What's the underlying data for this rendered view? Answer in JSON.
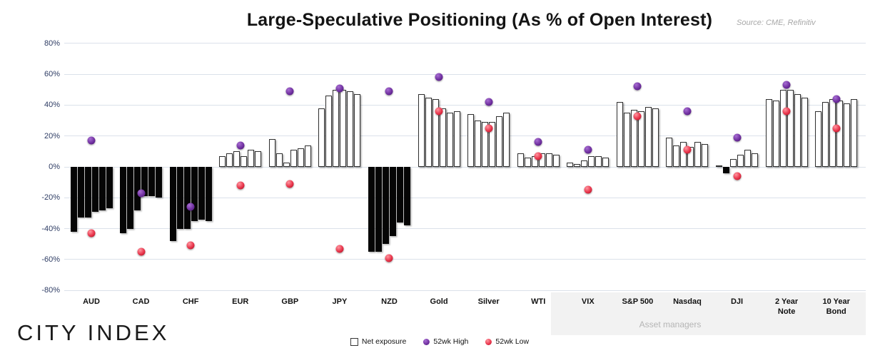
{
  "title": "Large-Speculative Positioning (As % of Open Interest)",
  "source": "Source: CME, Refinitiv",
  "logo": "CITY INDEX",
  "asset_managers_label": "Asset managers",
  "legend": {
    "net_exposure": "Net exposure",
    "high": "52wk High",
    "low": "52wk Low"
  },
  "colors": {
    "high_dot": "#7030a0",
    "low_dot": "#e8334a",
    "positive_bar_fill": "#ffffff",
    "negative_bar_fill": "#050505",
    "bar_outline": "#2f2f2f",
    "gridline": "#dbe1ea",
    "y_tick_text": "#2e3c64",
    "asset_managers_band": "#f2f2f2"
  },
  "chart_data": {
    "type": "bar",
    "title": "Large-Speculative Positioning (As % of Open Interest)",
    "xlabel": "",
    "ylabel": "",
    "ylim": [
      -80,
      80
    ],
    "grid": true,
    "legend_position": "bottom",
    "yticks": [
      {
        "value": 80,
        "label": "80%"
      },
      {
        "value": 60,
        "label": "60%"
      },
      {
        "value": 40,
        "label": "40%"
      },
      {
        "value": 20,
        "label": "20%"
      },
      {
        "value": 0,
        "label": "0%"
      },
      {
        "value": -20,
        "label": "-20%"
      },
      {
        "value": -40,
        "label": "-40%"
      },
      {
        "value": -60,
        "label": "-60%"
      },
      {
        "value": -80,
        "label": "-80%"
      }
    ],
    "series_legend": [
      "Net exposure",
      "52wk High",
      "52wk Low"
    ],
    "categories": [
      "AUD",
      "CAD",
      "CHF",
      "EUR",
      "GBP",
      "JPY",
      "NZD",
      "Gold",
      "Silver",
      "WTI",
      "VIX",
      "S&P 500",
      "Nasdaq",
      "DJI",
      "2 Year Note",
      "10 Year Bond"
    ],
    "groups": [
      {
        "name": "AUD",
        "label": "AUD",
        "net_exposure": [
          -42,
          -33,
          -33,
          -29,
          -28,
          -27
        ],
        "high_52wk": 17,
        "low_52wk": -43,
        "asset_manager": false
      },
      {
        "name": "CAD",
        "label": "CAD",
        "net_exposure": [
          -43,
          -40,
          -28,
          -19,
          -19,
          -20
        ],
        "high_52wk": -17,
        "low_52wk": -55,
        "asset_manager": false
      },
      {
        "name": "CHF",
        "label": "CHF",
        "net_exposure": [
          -48,
          -40,
          -40,
          -35,
          -34,
          -35
        ],
        "high_52wk": -26,
        "low_52wk": -51,
        "asset_manager": false
      },
      {
        "name": "EUR",
        "label": "EUR",
        "net_exposure": [
          7,
          9,
          10,
          7,
          11,
          10
        ],
        "high_52wk": 14,
        "low_52wk": -12,
        "asset_manager": false
      },
      {
        "name": "GBP",
        "label": "GBP",
        "net_exposure": [
          18,
          9,
          3,
          11,
          12,
          14
        ],
        "high_52wk": 49,
        "low_52wk": -11,
        "asset_manager": false
      },
      {
        "name": "JPY",
        "label": "JPY",
        "net_exposure": [
          38,
          46,
          50,
          50,
          49,
          47
        ],
        "high_52wk": 51,
        "low_52wk": -53,
        "asset_manager": false
      },
      {
        "name": "NZD",
        "label": "NZD",
        "net_exposure": [
          -55,
          -55,
          -50,
          -45,
          -36,
          -38
        ],
        "high_52wk": 49,
        "low_52wk": -59,
        "asset_manager": false
      },
      {
        "name": "Gold",
        "label": "Gold",
        "net_exposure": [
          47,
          45,
          44,
          38,
          35,
          36
        ],
        "high_52wk": 58,
        "low_52wk": 36,
        "asset_manager": false
      },
      {
        "name": "Silver",
        "label": "Silver",
        "net_exposure": [
          34,
          30,
          29,
          29,
          33,
          35
        ],
        "high_52wk": 42,
        "low_52wk": 25,
        "asset_manager": false
      },
      {
        "name": "WTI",
        "label": "WTI",
        "net_exposure": [
          9,
          6,
          7,
          9,
          9,
          8
        ],
        "high_52wk": 16,
        "low_52wk": 7,
        "asset_manager": false
      },
      {
        "name": "VIX",
        "label": "VIX",
        "net_exposure": [
          3,
          2,
          4,
          7,
          7,
          6
        ],
        "high_52wk": 11,
        "low_52wk": -15,
        "asset_manager": true
      },
      {
        "name": "S&P 500",
        "label": "S&P 500",
        "net_exposure": [
          42,
          35,
          37,
          36,
          39,
          38
        ],
        "high_52wk": 52,
        "low_52wk": 33,
        "asset_manager": true
      },
      {
        "name": "Nasdaq",
        "label": "Nasdaq",
        "net_exposure": [
          19,
          14,
          16,
          13,
          16,
          15
        ],
        "high_52wk": 36,
        "low_52wk": 11,
        "asset_manager": true
      },
      {
        "name": "DJI",
        "label": "DJI",
        "net_exposure": [
          1,
          -4,
          5,
          8,
          11,
          9
        ],
        "high_52wk": 19,
        "low_52wk": -6,
        "asset_manager": true
      },
      {
        "name": "2 Year Note",
        "label": "2 Year\nNote",
        "net_exposure": [
          44,
          43,
          50,
          50,
          47,
          45
        ],
        "high_52wk": 53,
        "low_52wk": 36,
        "asset_manager": true
      },
      {
        "name": "10 Year Bond",
        "label": "10 Year\nBond",
        "net_exposure": [
          36,
          42,
          44,
          43,
          41,
          44
        ],
        "high_52wk": 44,
        "low_52wk": 25,
        "asset_manager": true
      }
    ]
  }
}
